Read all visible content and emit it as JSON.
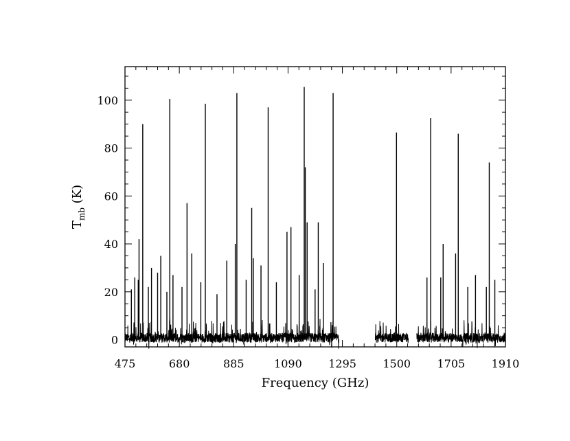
{
  "chart_data": {
    "type": "line",
    "title": "",
    "xlabel": "Frequency (GHz)",
    "ylabel_main": "T",
    "ylabel_sub": "mb",
    "ylabel_unit": " (K)",
    "xlim": [
      475,
      1910
    ],
    "ylim": [
      -3,
      114
    ],
    "xticks": [
      475,
      680,
      885,
      1090,
      1295,
      1500,
      1705,
      1910
    ],
    "yticks": [
      0,
      20,
      40,
      60,
      80,
      100
    ],
    "grid": false,
    "legend": "none",
    "line_color": "#000000",
    "coverage_segments": [
      [
        475,
        1282
      ],
      [
        1419,
        1544
      ],
      [
        1575,
        1910
      ]
    ],
    "noise_level": 5,
    "series": [
      {
        "peaks": [
          {
            "x": 499,
            "y": 21
          },
          {
            "x": 512,
            "y": 26
          },
          {
            "x": 525,
            "y": 25
          },
          {
            "x": 528,
            "y": 42
          },
          {
            "x": 542,
            "y": 90
          },
          {
            "x": 563,
            "y": 22
          },
          {
            "x": 575,
            "y": 30
          },
          {
            "x": 598,
            "y": 28
          },
          {
            "x": 610,
            "y": 35
          },
          {
            "x": 633,
            "y": 20
          },
          {
            "x": 644,
            "y": 100.5
          },
          {
            "x": 656,
            "y": 27
          },
          {
            "x": 690,
            "y": 22
          },
          {
            "x": 709,
            "y": 57
          },
          {
            "x": 727,
            "y": 36
          },
          {
            "x": 761,
            "y": 24
          },
          {
            "x": 778,
            "y": 98.5
          },
          {
            "x": 822,
            "y": 19
          },
          {
            "x": 859,
            "y": 33
          },
          {
            "x": 891,
            "y": 40
          },
          {
            "x": 897,
            "y": 103
          },
          {
            "x": 932,
            "y": 25
          },
          {
            "x": 953,
            "y": 55
          },
          {
            "x": 959,
            "y": 34
          },
          {
            "x": 988,
            "y": 31
          },
          {
            "x": 1015,
            "y": 97
          },
          {
            "x": 1046,
            "y": 24
          },
          {
            "x": 1086,
            "y": 45
          },
          {
            "x": 1101,
            "y": 47
          },
          {
            "x": 1132,
            "y": 27
          },
          {
            "x": 1151,
            "y": 105.5
          },
          {
            "x": 1155,
            "y": 72
          },
          {
            "x": 1162,
            "y": 49
          },
          {
            "x": 1192,
            "y": 21
          },
          {
            "x": 1204,
            "y": 49
          },
          {
            "x": 1223,
            "y": 32
          },
          {
            "x": 1260,
            "y": 103
          },
          {
            "x": 1499,
            "y": 86.5
          },
          {
            "x": 1614,
            "y": 26
          },
          {
            "x": 1628,
            "y": 92.5
          },
          {
            "x": 1666,
            "y": 26
          },
          {
            "x": 1675,
            "y": 40
          },
          {
            "x": 1722,
            "y": 36
          },
          {
            "x": 1732,
            "y": 86
          },
          {
            "x": 1768,
            "y": 22
          },
          {
            "x": 1797,
            "y": 27
          },
          {
            "x": 1838,
            "y": 22
          },
          {
            "x": 1849,
            "y": 74
          },
          {
            "x": 1870,
            "y": 25
          }
        ]
      }
    ]
  }
}
